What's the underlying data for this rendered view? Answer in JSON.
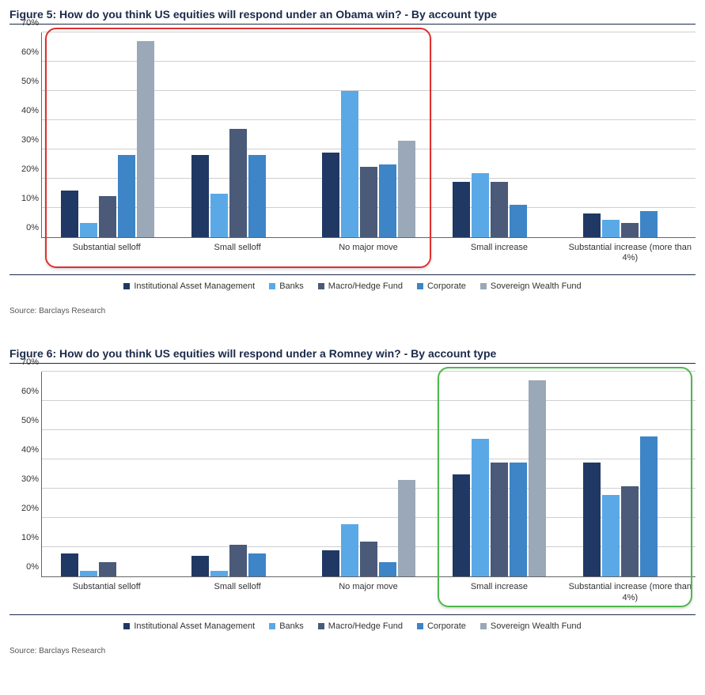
{
  "series": [
    {
      "key": "iam",
      "label": "Institutional Asset Management",
      "color": "#1f3864"
    },
    {
      "key": "bank",
      "label": "Banks",
      "color": "#5aa9e6"
    },
    {
      "key": "mhf",
      "label": "Macro/Hedge Fund",
      "color": "#4a5a78"
    },
    {
      "key": "corp",
      "label": "Corporate",
      "color": "#3d85c6"
    },
    {
      "key": "swf",
      "label": "Sovereign Wealth Fund",
      "color": "#9aa8b8"
    }
  ],
  "axis": {
    "ymin": 0,
    "ymax": 70,
    "ystep": 10,
    "tick_suffix": "%",
    "tick_fontsize": 11,
    "grid_color": "#cfcfcf",
    "axis_color": "#666666"
  },
  "source_text": "Source: Barclays Research",
  "figures": [
    {
      "id": "fig5",
      "title": "Figure 5: How do you think US equities will respond under an Obama win?  - By account type",
      "categories": [
        "Substantial selloff",
        "Small selloff",
        "No major move",
        "Small increase",
        "Substantial increase (more than 4%)"
      ],
      "data": {
        "iam": [
          16,
          28,
          29,
          19,
          8
        ],
        "bank": [
          5,
          15,
          50,
          22,
          6
        ],
        "mhf": [
          14,
          37,
          24,
          19,
          5
        ],
        "corp": [
          28,
          28,
          25,
          11,
          9
        ],
        "swf": [
          67,
          0,
          33,
          0,
          0
        ]
      },
      "highlight": {
        "color": "#e03030",
        "start_category_index": 0,
        "end_category_index": 2,
        "top_pct_of_ymax": 100,
        "bottom_pct_of_ymax": -6
      }
    },
    {
      "id": "fig6",
      "title": "Figure 6: How do you think US equities will respond under a Romney win?  - By account type",
      "categories": [
        "Substantial selloff",
        "Small selloff",
        "No major move",
        "Small increase",
        "Substantial increase (more than 4%)"
      ],
      "data": {
        "iam": [
          8,
          7,
          9,
          35,
          39
        ],
        "bank": [
          2,
          2,
          18,
          47,
          28
        ],
        "mhf": [
          5,
          11,
          12,
          39,
          31
        ],
        "corp": [
          0,
          8,
          5,
          39,
          48
        ],
        "swf": [
          0,
          0,
          33,
          67,
          0
        ]
      },
      "highlight": {
        "color": "#4fb84f",
        "start_category_index": 3,
        "end_category_index": 4,
        "top_pct_of_ymax": 100,
        "bottom_pct_of_ymax": -6
      }
    }
  ]
}
